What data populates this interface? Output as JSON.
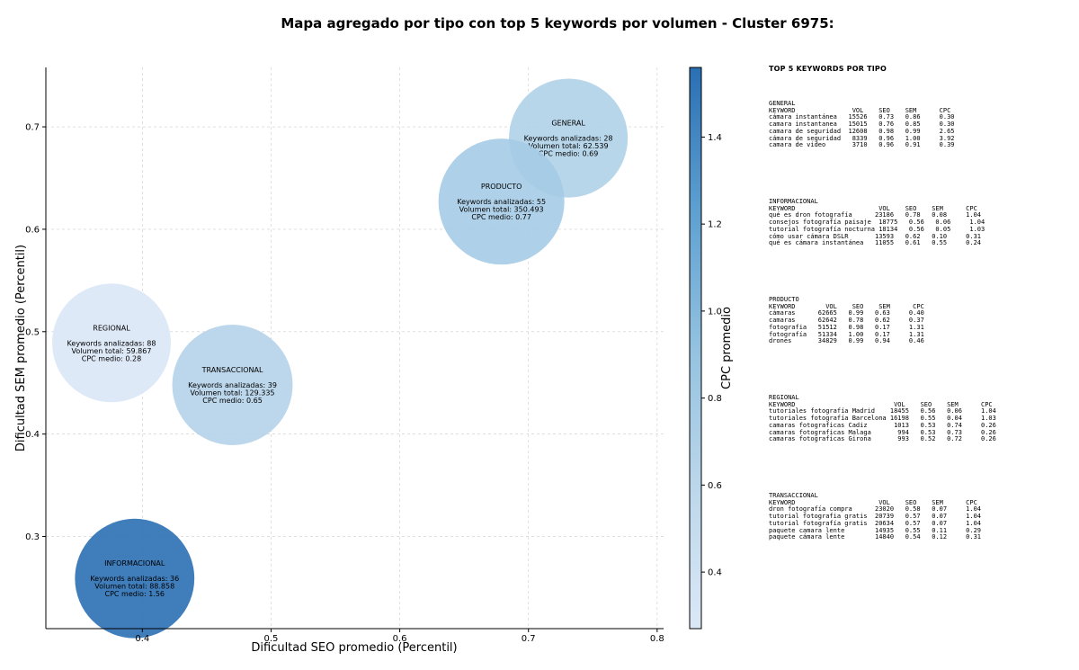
{
  "chart_data": {
    "type": "scatter",
    "title": "Mapa agregado por tipo con top 5 keywords por volumen - Cluster 6975:",
    "xlabel": "Dificultad SEO promedio (Percentil)",
    "ylabel": "Dificultad SEM promedio (Percentil)",
    "xlim": [
      0.325,
      0.805
    ],
    "ylim": [
      0.21,
      0.758
    ],
    "xticks": [
      "0.4",
      "0.5",
      "0.6",
      "0.7",
      "0.8"
    ],
    "yticks": [
      "0.3",
      "0.4",
      "0.5",
      "0.6",
      "0.7"
    ],
    "grid": true,
    "colorbar": {
      "label": "CPC promedio",
      "min": 0.27,
      "max": 1.56,
      "ticks": [
        "0.4",
        "0.6",
        "0.8",
        "1.0",
        "1.2",
        "1.4"
      ]
    },
    "points": [
      {
        "name": "GENERAL",
        "x": 0.731,
        "y": 0.689,
        "keywords": 28,
        "volume": 62539,
        "cpc": 0.69,
        "lines": [
          "GENERAL",
          "",
          "Keywords analizadas: 28",
          "Volumen total: 62.539",
          "CPC medio: 0.69"
        ]
      },
      {
        "name": "PRODUCTO",
        "x": 0.679,
        "y": 0.627,
        "keywords": 55,
        "volume": 350493,
        "cpc": 0.77,
        "lines": [
          "PRODUCTO",
          "",
          "Keywords analizadas: 55",
          "Volumen total: 350.493",
          "CPC medio: 0.77"
        ]
      },
      {
        "name": "REGIONAL",
        "x": 0.376,
        "y": 0.489,
        "keywords": 88,
        "volume": 59867,
        "cpc": 0.28,
        "lines": [
          "REGIONAL",
          "",
          "Keywords analizadas: 88",
          "Volumen total: 59.867",
          "CPC medio: 0.28"
        ]
      },
      {
        "name": "TRANSACCIONAL",
        "x": 0.47,
        "y": 0.448,
        "keywords": 39,
        "volume": 129335,
        "cpc": 0.65,
        "lines": [
          "TRANSACCIONAL",
          "",
          "Keywords analizadas: 39",
          "Volumen total: 129.335",
          "CPC medio: 0.65"
        ]
      },
      {
        "name": "INFORMACIONAL",
        "x": 0.394,
        "y": 0.259,
        "keywords": 36,
        "volume": 88858,
        "cpc": 1.56,
        "lines": [
          "INFORMACIONAL",
          "",
          "Keywords analizadas: 36",
          "Volumen total: 88.858",
          "CPC medio: 1.56"
        ]
      }
    ]
  },
  "side_panel": {
    "title": "TOP 5 KEYWORDS POR TIPO",
    "blocks": [
      {
        "lines": [
          "GENERAL",
          "KEYWORD               VOL    SEO    SEM      CPC",
          "cámara instantánea   15526   0.73   0.86     0.30",
          "camara instantanea   15015   0.76   0.85     0.30",
          "camara de seguridad  12608   0.98   0.99     2.65",
          "cámara de seguridad   8339   0.96   1.00     3.92",
          "camara de video       3710   0.96   0.91     0.39"
        ]
      },
      {
        "lines": [
          "INFORMACIONAL",
          "KEYWORD                      VOL    SEO    SEM      CPC",
          "qué es dron fotografía      23186   0.78   0.08     1.04",
          "consejos fotografía paisaje  18775   0.56   0.06     1.04",
          "tutorial fotografía nocturna 18134   0.56   0.05     1.03",
          "cómo usar cámara DSLR       13593   0.62   0.10     0.31",
          "qué es cámara instantánea   11055   0.61   0.55     0.24"
        ]
      },
      {
        "lines": [
          "PRODUCTO",
          "KEYWORD        VOL    SEO    SEM      CPC",
          "cámaras      62665   0.99   0.63     0.40",
          "camaras      62642   0.78   0.62     0.37",
          "fotografia   51512   0.98   0.17     1.31",
          "fotografía   51334   1.00   0.17     1.31",
          "drones       34829   0.99   0.94     0.46"
        ]
      },
      {
        "lines": [
          "REGIONAL",
          "KEYWORD                          VOL    SEO    SEM      CPC",
          "tutoriales fotografía Madrid    18455   0.56   0.06     1.04",
          "tutoriales fotografía Barcelona 16198   0.55   0.04     1.03",
          "camaras fotograficas Cadiz       1013   0.53   0.74     0.26",
          "camaras fotograficas Malaga       994   0.53   0.73     0.26",
          "camaras fotograficas Girona       993   0.52   0.72     0.26"
        ]
      },
      {
        "lines": [
          "TRANSACCIONAL",
          "KEYWORD                      VOL    SEO    SEM      CPC",
          "dron fotografía compra      23020   0.58   0.07     1.04",
          "tutorial fotografia gratis  20739   0.57   0.07     1.04",
          "tutorial fotografía gratis  20634   0.57   0.07     1.04",
          "paquete camara lente        14935   0.55   0.11     0.29",
          "paquete cámara lente        14840   0.54   0.12     0.31"
        ]
      }
    ]
  }
}
